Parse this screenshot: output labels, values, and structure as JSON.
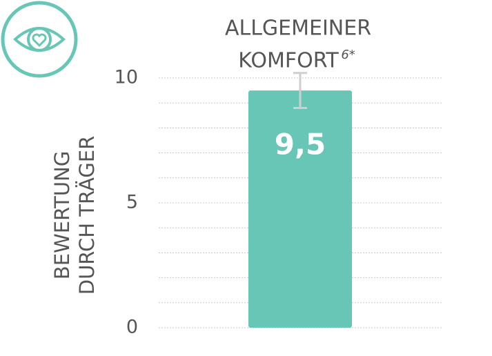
{
  "chart_data": {
    "type": "bar",
    "title": [
      "ALLGEMEINER",
      "KOMFORT"
    ],
    "title_note": "6*",
    "y_label": [
      "BEWERTUNG",
      "DURCH TRÄGER"
    ],
    "values": [
      9.5
    ],
    "value_labels": [
      "9,5"
    ],
    "errors": [
      0.7
    ],
    "color": "#68c6b7",
    "error_color": "#cfcfcf",
    "ylim": [
      0,
      10
    ],
    "yticks": [
      0,
      5,
      10
    ],
    "grid": true,
    "grid_lines": [
      0,
      1,
      2,
      3,
      4,
      5,
      6,
      7,
      8,
      9,
      10
    ]
  }
}
